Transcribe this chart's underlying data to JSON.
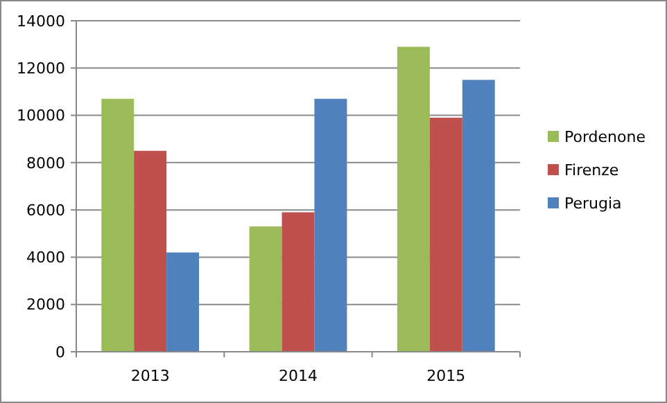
{
  "chart_data": {
    "type": "bar",
    "categories": [
      "2013",
      "2014",
      "2015"
    ],
    "series": [
      {
        "name": "Pordenone",
        "color": "#9bbb59",
        "values": [
          10700,
          5300,
          12900
        ]
      },
      {
        "name": "Firenze",
        "color": "#c0504d",
        "values": [
          8500,
          5900,
          9900
        ]
      },
      {
        "name": "Perugia",
        "color": "#4f81bd",
        "values": [
          4200,
          10700,
          11500
        ]
      }
    ],
    "ylim": [
      0,
      14000
    ],
    "yticks": [
      0,
      2000,
      4000,
      6000,
      8000,
      10000,
      12000,
      14000
    ],
    "grid": "y",
    "legend": "right"
  }
}
